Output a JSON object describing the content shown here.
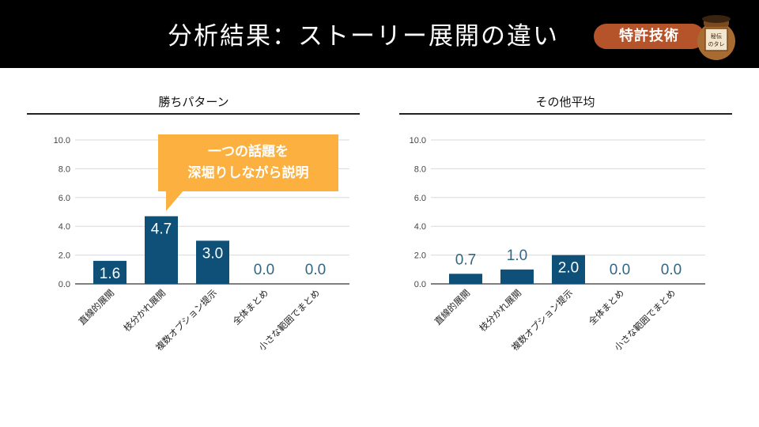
{
  "header": {
    "title": "分析結果：ストーリー展開の違い",
    "badge": "特許技術",
    "pot_label": "秘伝のタレ"
  },
  "colors": {
    "bar": "#0e5078",
    "label": "#336680",
    "header_bg": "#000000",
    "badge": "#b5532a",
    "callout": "#fbb040"
  },
  "callout": {
    "line1": "一つの話題を",
    "line2": "深堀りしながら説明"
  },
  "chart_data": [
    {
      "type": "bar",
      "title": "勝ちパターン",
      "categories": [
        "直線的展開",
        "枝分かれ展開",
        "複数オプション提示",
        "全体まとめ",
        "小さな範囲でまとめ"
      ],
      "values": [
        1.6,
        4.7,
        3.0,
        0.0,
        0.0
      ],
      "value_labels": [
        "1.6",
        "4.7",
        "3.0",
        "0.0",
        "0.0"
      ],
      "ylim": [
        0,
        10
      ],
      "yticks": [
        "0.0",
        "2.0",
        "4.0",
        "6.0",
        "8.0",
        "10.0"
      ],
      "xlabel": "",
      "ylabel": "",
      "grid": true
    },
    {
      "type": "bar",
      "title": "その他平均",
      "categories": [
        "直線的展開",
        "枝分かれ展開",
        "複数オプション提示",
        "全体まとめ",
        "小さな範囲でまとめ"
      ],
      "values": [
        0.7,
        1.0,
        2.0,
        0.0,
        0.0
      ],
      "value_labels": [
        "0.7",
        "1.0",
        "2.0",
        "0.0",
        "0.0"
      ],
      "ylim": [
        0,
        10
      ],
      "yticks": [
        "0.0",
        "2.0",
        "4.0",
        "6.0",
        "8.0",
        "10.0"
      ],
      "xlabel": "",
      "ylabel": "",
      "grid": true
    }
  ]
}
